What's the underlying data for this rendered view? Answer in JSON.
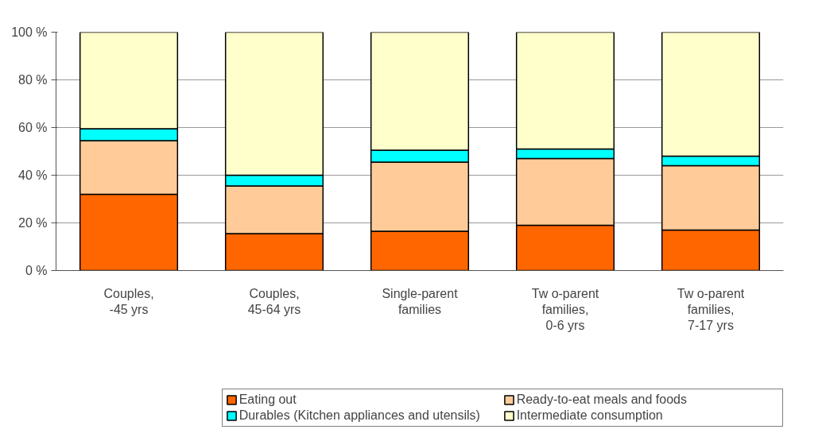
{
  "chart_data": {
    "type": "bar",
    "stacked": true,
    "categories": [
      "Couples,\n-45 yrs",
      "Couples,\n45-64 yrs",
      "Single-parent\nfamilies",
      "Tw o-parent\nfamilies,\n0-6 yrs",
      "Tw o-parent\nfamilies,\n7-17 yrs"
    ],
    "series": [
      {
        "name": "Eating out",
        "color": "#ff6600",
        "values": [
          32,
          15.5,
          16.5,
          19,
          17
        ]
      },
      {
        "name": "Ready-to-eat meals and foods",
        "color": "#ffcc99",
        "values": [
          22.5,
          20,
          29,
          28,
          27
        ]
      },
      {
        "name": "Durables (Kitchen appliances and utensils)",
        "color": "#00ffff",
        "values": [
          5,
          4.5,
          5,
          4,
          4
        ]
      },
      {
        "name": "Intermediate consumption",
        "color": "#ffffcc",
        "values": [
          40.5,
          60,
          49.5,
          49,
          52
        ]
      }
    ],
    "ylim": [
      0,
      100
    ],
    "yticks": [
      {
        "value": 0,
        "label": "0 %"
      },
      {
        "value": 20,
        "label": "20 %"
      },
      {
        "value": 40,
        "label": "40 %"
      },
      {
        "value": 60,
        "label": "60 %"
      },
      {
        "value": 80,
        "label": "80 %"
      },
      {
        "value": 100,
        "label": "100 %"
      }
    ],
    "grid": "y",
    "legend": "bottom"
  }
}
